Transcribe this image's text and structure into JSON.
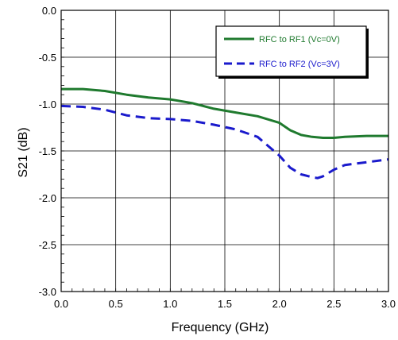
{
  "chart_data": {
    "type": "line",
    "xlabel": "Frequency (GHz)",
    "ylabel": "S21 (dB)",
    "xlim": [
      0.0,
      3.0
    ],
    "ylim": [
      -3.0,
      0.0
    ],
    "xticks": [
      0.0,
      0.5,
      1.0,
      1.5,
      2.0,
      2.5,
      3.0
    ],
    "xtick_labels": [
      "0.0",
      "0.5",
      "1.0",
      "1.5",
      "2.0",
      "2.5",
      "3.0"
    ],
    "yticks": [
      0.0,
      -0.5,
      -1.0,
      -1.5,
      -2.0,
      -2.5,
      -3.0
    ],
    "ytick_labels": [
      "0.0",
      "-0.5",
      "-1.0",
      "-1.5",
      "-2.0",
      "-2.5",
      "-3.0"
    ],
    "grid": true,
    "legend_position": "top-right",
    "series": [
      {
        "name": "RFC to RF1 (Vc=0V)",
        "color": "#1f7a2e",
        "dash": "solid",
        "x": [
          0.0,
          0.2,
          0.4,
          0.6,
          0.8,
          1.0,
          1.2,
          1.4,
          1.6,
          1.8,
          2.0,
          2.1,
          2.2,
          2.3,
          2.4,
          2.5,
          2.6,
          2.8,
          3.0
        ],
        "y": [
          -0.84,
          -0.84,
          -0.86,
          -0.9,
          -0.93,
          -0.95,
          -0.99,
          -1.05,
          -1.09,
          -1.13,
          -1.2,
          -1.28,
          -1.33,
          -1.35,
          -1.36,
          -1.36,
          -1.35,
          -1.34,
          -1.34
        ]
      },
      {
        "name": "RFC to RF2 (Vc=3V)",
        "color": "#1a1acc",
        "dash": "dashed",
        "x": [
          0.0,
          0.2,
          0.4,
          0.6,
          0.8,
          1.0,
          1.2,
          1.4,
          1.6,
          1.8,
          2.0,
          2.1,
          2.2,
          2.3,
          2.35,
          2.4,
          2.5,
          2.6,
          2.8,
          3.0
        ],
        "y": [
          -1.02,
          -1.03,
          -1.06,
          -1.12,
          -1.15,
          -1.16,
          -1.18,
          -1.22,
          -1.27,
          -1.35,
          -1.55,
          -1.68,
          -1.75,
          -1.78,
          -1.79,
          -1.77,
          -1.7,
          -1.65,
          -1.62,
          -1.59
        ]
      }
    ]
  }
}
